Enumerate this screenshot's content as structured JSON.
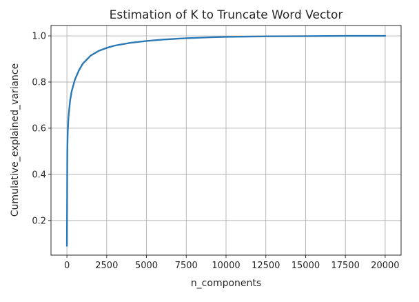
{
  "chart_data": {
    "type": "line",
    "title": "Estimation of K to Truncate Word Vector",
    "xlabel": "n_components",
    "ylabel": "Cumulative_explained_variance",
    "xlim": [
      -1000,
      21000
    ],
    "ylim": [
      0.05,
      1.045
    ],
    "xticks": [
      0,
      2500,
      5000,
      7500,
      10000,
      12500,
      15000,
      17500,
      20000
    ],
    "xtick_labels": [
      "0",
      "2500",
      "5000",
      "7500",
      "10000",
      "12500",
      "15000",
      "17500",
      "20000"
    ],
    "yticks": [
      0.2,
      0.4,
      0.6,
      0.8,
      1.0
    ],
    "ytick_labels": [
      "0.2",
      "0.4",
      "0.6",
      "0.8",
      "1.0"
    ],
    "grid": true,
    "line_color": "#2a78b5",
    "series": [
      {
        "x": [
          1,
          25,
          50,
          100,
          200,
          300,
          500,
          750,
          1000,
          1500,
          2000,
          2500,
          3000,
          4000,
          5000,
          6000,
          7500,
          9000,
          10000,
          12500,
          15000,
          17500,
          20000
        ],
        "y": [
          0.09,
          0.5,
          0.58,
          0.65,
          0.72,
          0.76,
          0.81,
          0.85,
          0.88,
          0.915,
          0.935,
          0.948,
          0.958,
          0.97,
          0.978,
          0.984,
          0.99,
          0.994,
          0.996,
          0.998,
          0.999,
          1.0,
          1.0
        ]
      }
    ]
  }
}
